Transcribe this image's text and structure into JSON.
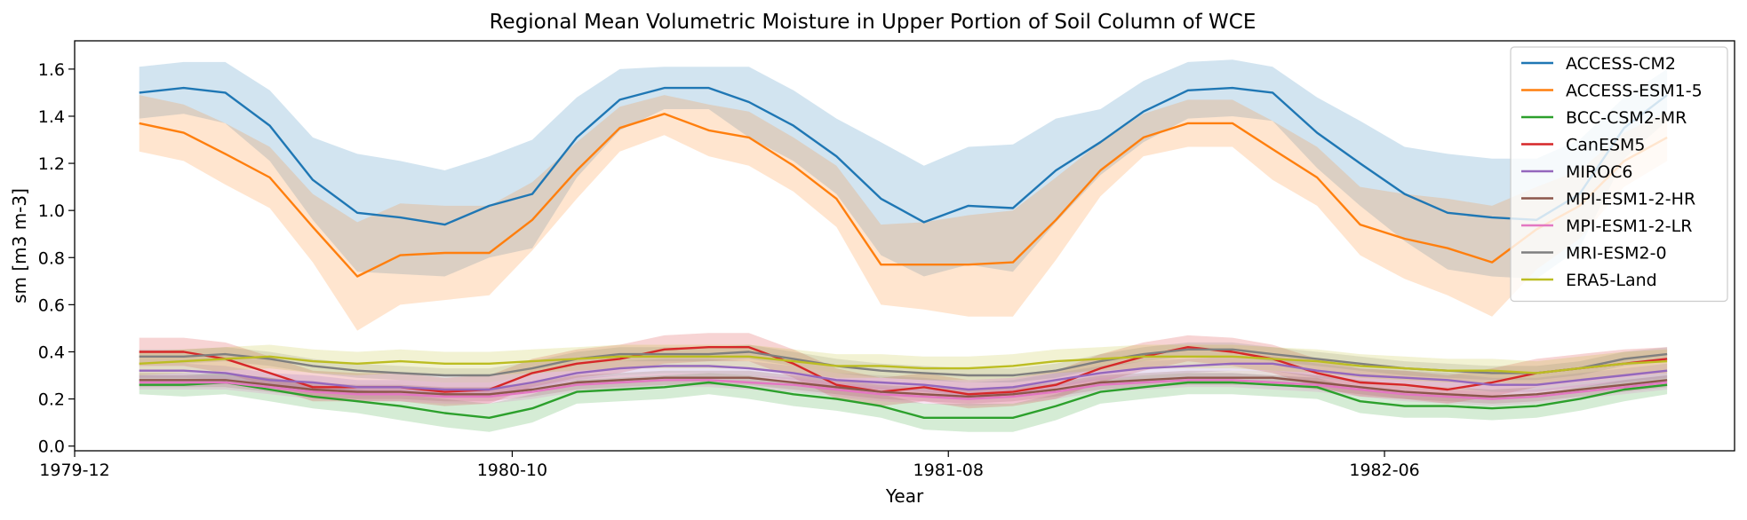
{
  "chart_data": {
    "type": "line",
    "title": "Regional Mean Volumetric Moisture in Upper Portion of Soil Column of WCE",
    "xlabel": "Year",
    "ylabel": "sm [m3 m-3]",
    "x": [
      "1980-01",
      "1980-02",
      "1980-03",
      "1980-04",
      "1980-05",
      "1980-06",
      "1980-07",
      "1980-08",
      "1980-09",
      "1980-10",
      "1980-11",
      "1980-12",
      "1981-01",
      "1981-02",
      "1981-03",
      "1981-04",
      "1981-05",
      "1981-06",
      "1981-07",
      "1981-08",
      "1981-09",
      "1981-10",
      "1981-11",
      "1981-12",
      "1982-01",
      "1982-02",
      "1982-03",
      "1982-04",
      "1982-05",
      "1982-06",
      "1982-07",
      "1982-08",
      "1982-09",
      "1982-10",
      "1982-11",
      "1982-12"
    ],
    "xlim": [
      "1979-12-01",
      "1983-01-31"
    ],
    "xticks": [
      "1979-12",
      "1980-10",
      "1981-08",
      "1982-06"
    ],
    "ylim": [
      -0.02,
      1.72
    ],
    "yticks": [
      "0.0",
      "0.2",
      "0.4",
      "0.6",
      "0.8",
      "1.0",
      "1.2",
      "1.4",
      "1.6"
    ],
    "grid": false,
    "legend_position": "top-right",
    "series": [
      {
        "name": "ACCESS-CM2",
        "color": "#1f77b4",
        "values": [
          1.5,
          1.52,
          1.5,
          1.36,
          1.13,
          0.99,
          0.97,
          0.94,
          1.02,
          1.07,
          1.31,
          1.47,
          1.52,
          1.52,
          1.46,
          1.36,
          1.23,
          1.05,
          0.95,
          1.02,
          1.01,
          1.17,
          1.29,
          1.42,
          1.51,
          1.52,
          1.5,
          1.33,
          1.2,
          1.07,
          0.99,
          0.97,
          0.96,
          1.07,
          1.35,
          1.49
        ],
        "upper": [
          1.61,
          1.63,
          1.63,
          1.51,
          1.31,
          1.24,
          1.21,
          1.17,
          1.23,
          1.3,
          1.48,
          1.6,
          1.61,
          1.61,
          1.61,
          1.51,
          1.39,
          1.29,
          1.19,
          1.27,
          1.28,
          1.39,
          1.43,
          1.55,
          1.63,
          1.64,
          1.61,
          1.48,
          1.38,
          1.27,
          1.24,
          1.22,
          1.22,
          1.3,
          1.48,
          1.6
        ],
        "lower": [
          1.39,
          1.41,
          1.37,
          1.21,
          0.96,
          0.74,
          0.73,
          0.72,
          0.8,
          0.84,
          1.14,
          1.34,
          1.43,
          1.43,
          1.31,
          1.21,
          1.07,
          0.81,
          0.72,
          0.77,
          0.74,
          0.95,
          1.15,
          1.29,
          1.39,
          1.4,
          1.38,
          1.18,
          1.02,
          0.87,
          0.75,
          0.72,
          0.71,
          0.84,
          1.22,
          1.38
        ]
      },
      {
        "name": "ACCESS-ESM1-5",
        "color": "#ff7f0e",
        "values": [
          1.37,
          1.33,
          1.24,
          1.14,
          0.93,
          0.72,
          0.81,
          0.82,
          0.82,
          0.96,
          1.17,
          1.35,
          1.41,
          1.34,
          1.31,
          1.19,
          1.05,
          0.77,
          0.77,
          0.77,
          0.78,
          0.96,
          1.17,
          1.31,
          1.37,
          1.37,
          1.26,
          1.14,
          0.94,
          0.88,
          0.84,
          0.78,
          0.92,
          1.02,
          1.21,
          1.31
        ],
        "upper": [
          1.49,
          1.45,
          1.37,
          1.27,
          1.07,
          0.95,
          1.03,
          1.02,
          1.02,
          1.12,
          1.29,
          1.44,
          1.49,
          1.45,
          1.42,
          1.31,
          1.19,
          0.94,
          0.95,
          0.98,
          1.0,
          1.14,
          1.29,
          1.41,
          1.47,
          1.47,
          1.38,
          1.27,
          1.1,
          1.07,
          1.05,
          1.02,
          1.1,
          1.17,
          1.33,
          1.42
        ],
        "lower": [
          1.25,
          1.21,
          1.11,
          1.01,
          0.78,
          0.49,
          0.6,
          0.62,
          0.64,
          0.83,
          1.05,
          1.25,
          1.32,
          1.23,
          1.19,
          1.08,
          0.93,
          0.6,
          0.58,
          0.55,
          0.55,
          0.79,
          1.06,
          1.23,
          1.27,
          1.27,
          1.13,
          1.02,
          0.81,
          0.71,
          0.64,
          0.55,
          0.75,
          0.88,
          1.1,
          1.21
        ]
      },
      {
        "name": "BCC-CSM2-MR",
        "color": "#2ca02c",
        "values": [
          0.26,
          0.26,
          0.27,
          0.24,
          0.21,
          0.19,
          0.17,
          0.14,
          0.12,
          0.16,
          0.23,
          0.24,
          0.25,
          0.27,
          0.25,
          0.22,
          0.2,
          0.17,
          0.12,
          0.12,
          0.12,
          0.17,
          0.23,
          0.25,
          0.27,
          0.27,
          0.26,
          0.25,
          0.19,
          0.17,
          0.17,
          0.16,
          0.17,
          0.2,
          0.24,
          0.26
        ],
        "upper": [
          0.3,
          0.3,
          0.31,
          0.29,
          0.26,
          0.24,
          0.22,
          0.2,
          0.18,
          0.22,
          0.28,
          0.29,
          0.3,
          0.31,
          0.3,
          0.27,
          0.25,
          0.22,
          0.18,
          0.18,
          0.18,
          0.22,
          0.28,
          0.3,
          0.31,
          0.31,
          0.3,
          0.29,
          0.24,
          0.22,
          0.22,
          0.21,
          0.22,
          0.25,
          0.28,
          0.3
        ],
        "lower": [
          0.22,
          0.21,
          0.22,
          0.19,
          0.16,
          0.14,
          0.11,
          0.08,
          0.06,
          0.1,
          0.18,
          0.19,
          0.2,
          0.22,
          0.2,
          0.17,
          0.15,
          0.12,
          0.07,
          0.06,
          0.06,
          0.11,
          0.18,
          0.2,
          0.22,
          0.22,
          0.21,
          0.2,
          0.14,
          0.12,
          0.12,
          0.11,
          0.12,
          0.15,
          0.19,
          0.22
        ]
      },
      {
        "name": "CanESM5",
        "color": "#d62728",
        "values": [
          0.4,
          0.4,
          0.37,
          0.31,
          0.25,
          0.25,
          0.25,
          0.23,
          0.24,
          0.31,
          0.35,
          0.37,
          0.41,
          0.42,
          0.42,
          0.35,
          0.26,
          0.23,
          0.25,
          0.22,
          0.23,
          0.26,
          0.33,
          0.38,
          0.42,
          0.4,
          0.37,
          0.31,
          0.27,
          0.26,
          0.24,
          0.27,
          0.31,
          0.33,
          0.35,
          0.37
        ],
        "upper": [
          0.46,
          0.46,
          0.44,
          0.38,
          0.32,
          0.31,
          0.31,
          0.29,
          0.3,
          0.37,
          0.41,
          0.43,
          0.47,
          0.48,
          0.48,
          0.41,
          0.33,
          0.29,
          0.31,
          0.28,
          0.29,
          0.32,
          0.39,
          0.44,
          0.47,
          0.46,
          0.43,
          0.37,
          0.33,
          0.32,
          0.3,
          0.33,
          0.37,
          0.39,
          0.41,
          0.42
        ],
        "lower": [
          0.34,
          0.34,
          0.31,
          0.25,
          0.19,
          0.19,
          0.19,
          0.17,
          0.18,
          0.25,
          0.29,
          0.31,
          0.35,
          0.36,
          0.36,
          0.29,
          0.2,
          0.17,
          0.19,
          0.16,
          0.17,
          0.2,
          0.27,
          0.32,
          0.36,
          0.34,
          0.31,
          0.25,
          0.21,
          0.2,
          0.18,
          0.21,
          0.25,
          0.27,
          0.29,
          0.31
        ]
      },
      {
        "name": "MIROC6",
        "color": "#9467bd",
        "values": [
          0.32,
          0.32,
          0.31,
          0.28,
          0.27,
          0.25,
          0.25,
          0.24,
          0.24,
          0.27,
          0.31,
          0.33,
          0.34,
          0.34,
          0.33,
          0.31,
          0.28,
          0.27,
          0.26,
          0.24,
          0.25,
          0.28,
          0.31,
          0.33,
          0.34,
          0.35,
          0.35,
          0.32,
          0.3,
          0.29,
          0.28,
          0.26,
          0.26,
          0.28,
          0.3,
          0.32
        ],
        "upper": [
          0.35,
          0.35,
          0.34,
          0.31,
          0.3,
          0.28,
          0.28,
          0.27,
          0.27,
          0.3,
          0.34,
          0.36,
          0.37,
          0.37,
          0.36,
          0.34,
          0.31,
          0.3,
          0.29,
          0.27,
          0.28,
          0.31,
          0.34,
          0.36,
          0.37,
          0.38,
          0.38,
          0.35,
          0.33,
          0.32,
          0.31,
          0.29,
          0.29,
          0.31,
          0.33,
          0.35
        ],
        "lower": [
          0.29,
          0.29,
          0.28,
          0.25,
          0.24,
          0.22,
          0.22,
          0.21,
          0.21,
          0.24,
          0.28,
          0.3,
          0.31,
          0.31,
          0.3,
          0.28,
          0.25,
          0.24,
          0.23,
          0.21,
          0.22,
          0.25,
          0.28,
          0.3,
          0.31,
          0.32,
          0.32,
          0.29,
          0.27,
          0.26,
          0.25,
          0.23,
          0.23,
          0.25,
          0.27,
          0.29
        ]
      },
      {
        "name": "MPI-ESM1-2-HR",
        "color": "#8c564b",
        "values": [
          0.28,
          0.28,
          0.28,
          0.26,
          0.24,
          0.23,
          0.23,
          0.22,
          0.22,
          0.24,
          0.27,
          0.28,
          0.29,
          0.29,
          0.29,
          0.27,
          0.25,
          0.23,
          0.22,
          0.21,
          0.22,
          0.24,
          0.27,
          0.28,
          0.29,
          0.29,
          0.29,
          0.27,
          0.25,
          0.23,
          0.22,
          0.21,
          0.22,
          0.24,
          0.26,
          0.28
        ],
        "upper": [
          0.31,
          0.31,
          0.31,
          0.29,
          0.27,
          0.26,
          0.26,
          0.25,
          0.25,
          0.27,
          0.3,
          0.31,
          0.32,
          0.32,
          0.32,
          0.3,
          0.28,
          0.26,
          0.25,
          0.24,
          0.25,
          0.27,
          0.3,
          0.31,
          0.32,
          0.32,
          0.32,
          0.3,
          0.28,
          0.26,
          0.25,
          0.24,
          0.25,
          0.27,
          0.29,
          0.31
        ],
        "lower": [
          0.25,
          0.25,
          0.25,
          0.23,
          0.21,
          0.2,
          0.2,
          0.19,
          0.19,
          0.21,
          0.24,
          0.25,
          0.26,
          0.26,
          0.26,
          0.24,
          0.22,
          0.2,
          0.19,
          0.18,
          0.19,
          0.21,
          0.24,
          0.25,
          0.26,
          0.26,
          0.26,
          0.24,
          0.22,
          0.2,
          0.19,
          0.18,
          0.19,
          0.21,
          0.23,
          0.25
        ]
      },
      {
        "name": "MPI-ESM1-2-LR",
        "color": "#e377c2",
        "values": [
          0.27,
          0.27,
          0.27,
          0.25,
          0.23,
          0.22,
          0.22,
          0.21,
          0.21,
          0.23,
          0.26,
          0.27,
          0.28,
          0.28,
          0.27,
          0.26,
          0.24,
          0.22,
          0.21,
          0.2,
          0.21,
          0.23,
          0.26,
          0.27,
          0.28,
          0.28,
          0.27,
          0.26,
          0.24,
          0.22,
          0.21,
          0.2,
          0.21,
          0.23,
          0.25,
          0.27
        ],
        "upper": [
          0.3,
          0.3,
          0.3,
          0.28,
          0.26,
          0.25,
          0.25,
          0.24,
          0.24,
          0.26,
          0.29,
          0.3,
          0.31,
          0.31,
          0.3,
          0.29,
          0.27,
          0.25,
          0.24,
          0.23,
          0.24,
          0.26,
          0.29,
          0.3,
          0.31,
          0.31,
          0.3,
          0.29,
          0.27,
          0.25,
          0.24,
          0.23,
          0.24,
          0.26,
          0.28,
          0.3
        ],
        "lower": [
          0.24,
          0.24,
          0.24,
          0.22,
          0.2,
          0.19,
          0.19,
          0.18,
          0.18,
          0.2,
          0.23,
          0.24,
          0.25,
          0.25,
          0.24,
          0.23,
          0.21,
          0.19,
          0.18,
          0.17,
          0.18,
          0.2,
          0.23,
          0.24,
          0.25,
          0.25,
          0.24,
          0.23,
          0.21,
          0.19,
          0.18,
          0.17,
          0.18,
          0.2,
          0.22,
          0.24
        ]
      },
      {
        "name": "MRI-ESM2-0",
        "color": "#7f7f7f",
        "values": [
          0.38,
          0.38,
          0.39,
          0.37,
          0.34,
          0.32,
          0.31,
          0.3,
          0.3,
          0.33,
          0.37,
          0.39,
          0.39,
          0.39,
          0.4,
          0.37,
          0.34,
          0.32,
          0.31,
          0.3,
          0.3,
          0.32,
          0.36,
          0.39,
          0.41,
          0.41,
          0.39,
          0.37,
          0.35,
          0.33,
          0.32,
          0.31,
          0.31,
          0.33,
          0.37,
          0.39
        ],
        "upper": [
          0.41,
          0.41,
          0.42,
          0.4,
          0.37,
          0.35,
          0.34,
          0.33,
          0.33,
          0.36,
          0.4,
          0.42,
          0.42,
          0.42,
          0.43,
          0.4,
          0.37,
          0.35,
          0.34,
          0.33,
          0.33,
          0.35,
          0.39,
          0.42,
          0.44,
          0.44,
          0.42,
          0.4,
          0.38,
          0.36,
          0.35,
          0.34,
          0.34,
          0.36,
          0.4,
          0.42
        ],
        "lower": [
          0.35,
          0.35,
          0.36,
          0.34,
          0.31,
          0.29,
          0.28,
          0.27,
          0.27,
          0.3,
          0.34,
          0.36,
          0.36,
          0.36,
          0.37,
          0.34,
          0.31,
          0.29,
          0.28,
          0.27,
          0.27,
          0.29,
          0.33,
          0.36,
          0.38,
          0.38,
          0.36,
          0.34,
          0.32,
          0.3,
          0.29,
          0.28,
          0.28,
          0.3,
          0.34,
          0.36
        ]
      },
      {
        "name": "ERA5-Land",
        "color": "#bcbd22",
        "values": [
          0.35,
          0.36,
          0.37,
          0.38,
          0.36,
          0.35,
          0.36,
          0.35,
          0.35,
          0.36,
          0.37,
          0.38,
          0.38,
          0.38,
          0.38,
          0.36,
          0.34,
          0.34,
          0.33,
          0.33,
          0.34,
          0.36,
          0.37,
          0.38,
          0.38,
          0.38,
          0.37,
          0.36,
          0.34,
          0.33,
          0.32,
          0.32,
          0.31,
          0.33,
          0.35,
          0.36
        ],
        "upper": [
          0.4,
          0.41,
          0.42,
          0.43,
          0.41,
          0.4,
          0.41,
          0.4,
          0.4,
          0.41,
          0.42,
          0.43,
          0.43,
          0.43,
          0.43,
          0.41,
          0.39,
          0.39,
          0.38,
          0.38,
          0.39,
          0.41,
          0.42,
          0.43,
          0.43,
          0.43,
          0.42,
          0.41,
          0.39,
          0.38,
          0.37,
          0.37,
          0.36,
          0.38,
          0.4,
          0.41
        ],
        "lower": [
          0.3,
          0.31,
          0.32,
          0.33,
          0.31,
          0.3,
          0.31,
          0.3,
          0.3,
          0.31,
          0.32,
          0.33,
          0.33,
          0.33,
          0.33,
          0.31,
          0.29,
          0.29,
          0.28,
          0.28,
          0.29,
          0.31,
          0.32,
          0.33,
          0.33,
          0.33,
          0.32,
          0.31,
          0.29,
          0.28,
          0.27,
          0.27,
          0.26,
          0.28,
          0.3,
          0.31
        ]
      }
    ]
  }
}
